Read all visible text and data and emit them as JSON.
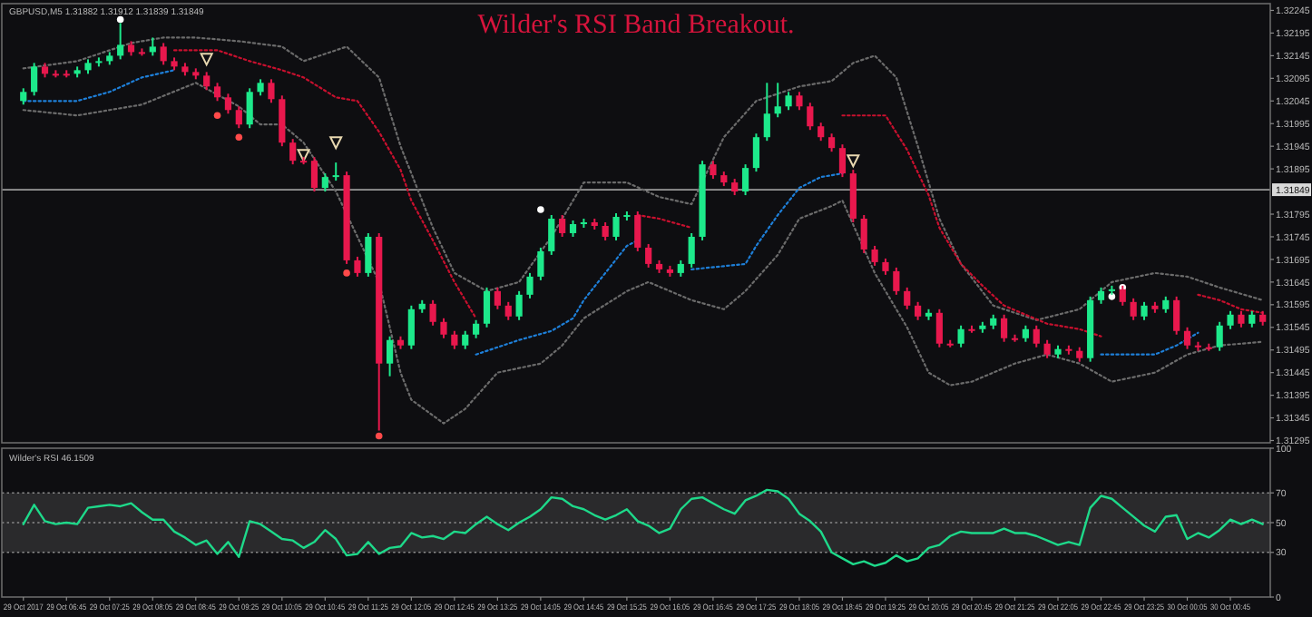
{
  "chart_data": [
    {
      "type": "candlestick",
      "title": "Wilder's RSI Band Breakout.",
      "subtitle": "GBPUSD,M5 1.31882 1.31912 1.31839 1.31849",
      "x": [
        "2017-10-29T06:05",
        "2017-10-29T06:15",
        "2017-10-29T06:25",
        "2017-10-29T06:35",
        "2017-10-29T06:45",
        "2017-10-29T06:55",
        "2017-10-29T07:05",
        "2017-10-29T07:15",
        "2017-10-29T07:25",
        "2017-10-29T07:35",
        "2017-10-29T07:45",
        "2017-10-29T07:55",
        "2017-10-29T08:05",
        "2017-10-29T08:15",
        "2017-10-29T08:25",
        "2017-10-29T08:35",
        "2017-10-29T08:45",
        "2017-10-29T08:55",
        "2017-10-29T09:05",
        "2017-10-29T09:15",
        "2017-10-29T09:25",
        "2017-10-29T09:35",
        "2017-10-29T09:45",
        "2017-10-29T09:55",
        "2017-10-29T10:05",
        "2017-10-29T10:15",
        "2017-10-29T10:25",
        "2017-10-29T10:35",
        "2017-10-29T10:45",
        "2017-10-29T10:55",
        "2017-10-29T11:05",
        "2017-10-29T11:15",
        "2017-10-29T11:25",
        "2017-10-29T11:35",
        "2017-10-29T11:45",
        "2017-10-29T11:55",
        "2017-10-29T12:05",
        "2017-10-29T12:15",
        "2017-10-29T12:25",
        "2017-10-29T12:35",
        "2017-10-29T12:45",
        "2017-10-29T12:55",
        "2017-10-29T13:05",
        "2017-10-29T13:15",
        "2017-10-29T13:25",
        "2017-10-29T13:35",
        "2017-10-29T13:45",
        "2017-10-29T13:55",
        "2017-10-29T14:05",
        "2017-10-29T14:15",
        "2017-10-29T14:25",
        "2017-10-29T14:35",
        "2017-10-29T14:45",
        "2017-10-29T14:55",
        "2017-10-29T15:05",
        "2017-10-29T15:15",
        "2017-10-29T15:25",
        "2017-10-29T15:35",
        "2017-10-29T15:45",
        "2017-10-29T15:55",
        "2017-10-29T16:05",
        "2017-10-29T16:15",
        "2017-10-29T16:25",
        "2017-10-29T16:35",
        "2017-10-29T16:45",
        "2017-10-29T16:55",
        "2017-10-29T17:05",
        "2017-10-29T17:15",
        "2017-10-29T17:25",
        "2017-10-29T17:35",
        "2017-10-29T17:45",
        "2017-10-29T17:55",
        "2017-10-29T18:05",
        "2017-10-29T18:15",
        "2017-10-29T18:25",
        "2017-10-29T18:35",
        "2017-10-29T18:45",
        "2017-10-29T18:55",
        "2017-10-29T19:05",
        "2017-10-29T19:15",
        "2017-10-29T19:25",
        "2017-10-29T19:35",
        "2017-10-29T19:45",
        "2017-10-29T19:55",
        "2017-10-29T20:05",
        "2017-10-29T20:15",
        "2017-10-29T20:25",
        "2017-10-29T20:35",
        "2017-10-29T20:45",
        "2017-10-29T20:55",
        "2017-10-29T21:05",
        "2017-10-29T21:15",
        "2017-10-29T21:25",
        "2017-10-29T21:35",
        "2017-10-29T21:45",
        "2017-10-29T21:55",
        "2017-10-29T22:05",
        "2017-10-29T22:15",
        "2017-10-29T22:25",
        "2017-10-29T22:35",
        "2017-10-29T22:45",
        "2017-10-29T22:55",
        "2017-10-29T23:05",
        "2017-10-29T23:15",
        "2017-10-29T23:25",
        "2017-10-29T23:35",
        "2017-10-29T23:45",
        "2017-10-29T23:55",
        "2017-10-30T00:05",
        "2017-10-30T00:15",
        "2017-10-30T00:25",
        "2017-10-30T00:35",
        "2017-10-30T00:45",
        "2017-10-30T00:55",
        "2017-10-30T01:05",
        "2017-10-30T01:15"
      ],
      "ohlc": [
        [
          1.32045,
          1.32073,
          1.32037,
          1.32065
        ],
        [
          1.32065,
          1.32129,
          1.32057,
          1.32121
        ],
        [
          1.32121,
          1.32129,
          1.32097,
          1.32105
        ],
        [
          1.32105,
          1.32113,
          1.32097,
          1.32105
        ],
        [
          1.32105,
          1.32113,
          1.32097,
          1.32105
        ],
        [
          1.32105,
          1.32121,
          1.32097,
          1.32113
        ],
        [
          1.32113,
          1.32137,
          1.32105,
          1.32129
        ],
        [
          1.32129,
          1.32141,
          1.32121,
          1.32133
        ],
        [
          1.32133,
          1.32153,
          1.32125,
          1.32145
        ],
        [
          1.32145,
          1.32217,
          1.32137,
          1.32169
        ],
        [
          1.32169,
          1.32177,
          1.32145,
          1.32153
        ],
        [
          1.32153,
          1.32161,
          1.32145,
          1.32153
        ],
        [
          1.32153,
          1.32185,
          1.32145,
          1.32165
        ],
        [
          1.32165,
          1.32173,
          1.32125,
          1.32133
        ],
        [
          1.32133,
          1.32141,
          1.32113,
          1.32121
        ],
        [
          1.32121,
          1.32129,
          1.32101,
          1.32109
        ],
        [
          1.32109,
          1.32117,
          1.32093,
          1.32101
        ],
        [
          1.32101,
          1.32109,
          1.32069,
          1.32077
        ],
        [
          1.32077,
          1.32085,
          1.32045,
          1.32053
        ],
        [
          1.32053,
          1.32061,
          1.32017,
          1.32025
        ],
        [
          1.32025,
          1.32033,
          1.31985,
          1.31993
        ],
        [
          1.31993,
          1.32073,
          1.31985,
          1.32065
        ],
        [
          1.32065,
          1.32093,
          1.32057,
          1.32085
        ],
        [
          1.32085,
          1.32093,
          1.32041,
          1.32049
        ],
        [
          1.32049,
          1.32057,
          1.31945,
          1.31953
        ],
        [
          1.31953,
          1.31961,
          1.31905,
          1.31913
        ],
        [
          1.31913,
          1.31921,
          1.31905,
          1.31913
        ],
        [
          1.31913,
          1.31921,
          1.31845,
          1.31853
        ],
        [
          1.31853,
          1.31885,
          1.31845,
          1.31877
        ],
        [
          1.31877,
          1.31909,
          1.31869,
          1.31881
        ],
        [
          1.31881,
          1.31889,
          1.31685,
          1.31693
        ],
        [
          1.31693,
          1.31701,
          1.31657,
          1.31665
        ],
        [
          1.31665,
          1.31753,
          1.31657,
          1.31745
        ],
        [
          1.31745,
          1.31753,
          1.31317,
          1.31465
        ],
        [
          1.31465,
          1.31525,
          1.31437,
          1.31517
        ],
        [
          1.31517,
          1.31525,
          1.31497,
          1.31505
        ],
        [
          1.31505,
          1.31593,
          1.31497,
          1.31585
        ],
        [
          1.31585,
          1.31605,
          1.31577,
          1.31597
        ],
        [
          1.31597,
          1.31605,
          1.31549,
          1.31557
        ],
        [
          1.31557,
          1.31565,
          1.31521,
          1.31529
        ],
        [
          1.31529,
          1.31537,
          1.31497,
          1.31505
        ],
        [
          1.31505,
          1.31537,
          1.31497,
          1.31529
        ],
        [
          1.31529,
          1.31561,
          1.31521,
          1.31553
        ],
        [
          1.31553,
          1.31633,
          1.31545,
          1.31625
        ],
        [
          1.31625,
          1.31633,
          1.31585,
          1.31593
        ],
        [
          1.31593,
          1.31601,
          1.31561,
          1.31569
        ],
        [
          1.31569,
          1.31625,
          1.31561,
          1.31617
        ],
        [
          1.31617,
          1.31665,
          1.31609,
          1.31657
        ],
        [
          1.31657,
          1.31721,
          1.31649,
          1.31713
        ],
        [
          1.31713,
          1.31793,
          1.31705,
          1.31785
        ],
        [
          1.31785,
          1.31793,
          1.31745,
          1.31753
        ],
        [
          1.31753,
          1.31781,
          1.31745,
          1.31773
        ],
        [
          1.31773,
          1.31785,
          1.31765,
          1.31777
        ],
        [
          1.31777,
          1.31785,
          1.31761,
          1.31769
        ],
        [
          1.31769,
          1.31777,
          1.31737,
          1.31745
        ],
        [
          1.31745,
          1.31797,
          1.31737,
          1.31789
        ],
        [
          1.31789,
          1.31801,
          1.31781,
          1.31793
        ],
        [
          1.31793,
          1.31801,
          1.31713,
          1.31721
        ],
        [
          1.31721,
          1.31729,
          1.31677,
          1.31685
        ],
        [
          1.31685,
          1.31693,
          1.31665,
          1.31673
        ],
        [
          1.31673,
          1.31681,
          1.31657,
          1.31665
        ],
        [
          1.31665,
          1.31693,
          1.31657,
          1.31685
        ],
        [
          1.31685,
          1.31753,
          1.31677,
          1.31745
        ],
        [
          1.31745,
          1.31913,
          1.31737,
          1.31905
        ],
        [
          1.31905,
          1.31913,
          1.31873,
          1.31881
        ],
        [
          1.31881,
          1.31889,
          1.31857,
          1.31865
        ],
        [
          1.31865,
          1.31873,
          1.31837,
          1.31845
        ],
        [
          1.31845,
          1.31905,
          1.31837,
          1.31897
        ],
        [
          1.31897,
          1.31973,
          1.31889,
          1.31965
        ],
        [
          1.31965,
          1.32085,
          1.31957,
          1.32017
        ],
        [
          1.32017,
          1.32085,
          1.32009,
          1.32033
        ],
        [
          1.32033,
          1.32065,
          1.32025,
          1.32057
        ],
        [
          1.32057,
          1.32065,
          1.32025,
          1.32033
        ],
        [
          1.32033,
          1.32041,
          1.31981,
          1.31989
        ],
        [
          1.31989,
          1.31997,
          1.31957,
          1.31965
        ],
        [
          1.31965,
          1.31973,
          1.31933,
          1.31941
        ],
        [
          1.31941,
          1.31949,
          1.31877,
          1.31885
        ],
        [
          1.31885,
          1.31893,
          1.31777,
          1.31785
        ],
        [
          1.31785,
          1.31793,
          1.31709,
          1.31717
        ],
        [
          1.31717,
          1.31725,
          1.31681,
          1.31689
        ],
        [
          1.31689,
          1.31697,
          1.31661,
          1.31669
        ],
        [
          1.31669,
          1.31677,
          1.31617,
          1.31625
        ],
        [
          1.31625,
          1.31633,
          1.31585,
          1.31593
        ],
        [
          1.31593,
          1.31601,
          1.31561,
          1.31569
        ],
        [
          1.31569,
          1.31585,
          1.31561,
          1.31577
        ],
        [
          1.31577,
          1.31585,
          1.31501,
          1.31509
        ],
        [
          1.31509,
          1.31517,
          1.31501,
          1.31509
        ],
        [
          1.31509,
          1.31549,
          1.31501,
          1.31541
        ],
        [
          1.31541,
          1.31549,
          1.31533,
          1.31541
        ],
        [
          1.31541,
          1.31557,
          1.31533,
          1.31549
        ],
        [
          1.31549,
          1.31573,
          1.31541,
          1.31565
        ],
        [
          1.31565,
          1.31573,
          1.31513,
          1.31521
        ],
        [
          1.31521,
          1.31529,
          1.31513,
          1.31521
        ],
        [
          1.31521,
          1.31549,
          1.31513,
          1.31541
        ],
        [
          1.31541,
          1.31549,
          1.31501,
          1.31509
        ],
        [
          1.31509,
          1.31517,
          1.31477,
          1.31485
        ],
        [
          1.31485,
          1.31505,
          1.31477,
          1.31497
        ],
        [
          1.31497,
          1.31505,
          1.31485,
          1.31493
        ],
        [
          1.31493,
          1.31501,
          1.31469,
          1.31477
        ],
        [
          1.31477,
          1.31613,
          1.31469,
          1.31605
        ],
        [
          1.31605,
          1.31633,
          1.31597,
          1.31625
        ],
        [
          1.31625,
          1.31637,
          1.31617,
          1.31629
        ],
        [
          1.31629,
          1.31637,
          1.31593,
          1.31601
        ],
        [
          1.31601,
          1.31609,
          1.31561,
          1.31569
        ],
        [
          1.31569,
          1.31601,
          1.31561,
          1.31593
        ],
        [
          1.31593,
          1.31601,
          1.31577,
          1.31585
        ],
        [
          1.31585,
          1.31613,
          1.31577,
          1.31605
        ],
        [
          1.31605,
          1.31613,
          1.31529,
          1.31537
        ],
        [
          1.31537,
          1.31545,
          1.31497,
          1.31505
        ],
        [
          1.31505,
          1.31513,
          1.31493,
          1.31501
        ],
        [
          1.31501,
          1.31509,
          1.31493,
          1.31501
        ],
        [
          1.31501,
          1.31557,
          1.31493,
          1.31549
        ],
        [
          1.31549,
          1.31581,
          1.31541,
          1.31573
        ],
        [
          1.31573,
          1.31581,
          1.31545,
          1.31553
        ],
        [
          1.31553,
          1.31581,
          1.31545,
          1.31573
        ],
        [
          1.31573,
          1.31581,
          1.31549,
          1.31557
        ]
      ],
      "colors": [
        "#1de98b",
        "#1de98b",
        "#e8184d",
        "#e8184d",
        "#e8184d",
        "#1de98b",
        "#1de98b",
        "#1de98b",
        "#1de98b",
        "#1de98b",
        "#e8184d",
        "#e8184d",
        "#1de98b",
        "#e8184d",
        "#e8184d",
        "#e8184d",
        "#e8184d",
        "#e8184d",
        "#e8184d",
        "#e8184d",
        "#e8184d",
        "#1de98b",
        "#1de98b",
        "#e8184d",
        "#e8184d",
        "#e8184d",
        "#e8184d",
        "#e8184d",
        "#1de98b",
        "#1de98b",
        "#e8184d",
        "#e8184d",
        "#1de98b",
        "#e8184d",
        "#1de98b",
        "#e8184d",
        "#1de98b",
        "#1de98b",
        "#e8184d",
        "#e8184d",
        "#e8184d",
        "#1de98b",
        "#1de98b",
        "#1de98b",
        "#e8184d",
        "#e8184d",
        "#1de98b",
        "#1de98b",
        "#1de98b",
        "#1de98b",
        "#e8184d",
        "#1de98b",
        "#1de98b",
        "#e8184d",
        "#e8184d",
        "#1de98b",
        "#1de98b",
        "#e8184d",
        "#e8184d",
        "#e8184d",
        "#e8184d",
        "#1de98b",
        "#1de98b",
        "#1de98b",
        "#e8184d",
        "#e8184d",
        "#e8184d",
        "#1de98b",
        "#1de98b",
        "#1de98b",
        "#1de98b",
        "#1de98b",
        "#e8184d",
        "#e8184d",
        "#e8184d",
        "#e8184d",
        "#e8184d",
        "#e8184d",
        "#e8184d",
        "#e8184d",
        "#e8184d",
        "#e8184d",
        "#e8184d",
        "#e8184d",
        "#1de98b",
        "#e8184d",
        "#e8184d",
        "#1de98b",
        "#e8184d",
        "#1de98b",
        "#1de98b",
        "#e8184d",
        "#e8184d",
        "#1de98b",
        "#e8184d",
        "#e8184d",
        "#1de98b",
        "#e8184d",
        "#e8184d",
        "#1de98b",
        "#1de98b",
        "#1de98b",
        "#e8184d",
        "#e8184d",
        "#1de98b",
        "#e8184d",
        "#1de98b",
        "#e8184d",
        "#e8184d",
        "#e8184d",
        "#e8184d",
        "#1de98b",
        "#1de98b",
        "#e8184d",
        "#1de98b",
        "#e8184d"
      ],
      "series": [
        {
          "type": "line",
          "line_style": "dotted",
          "color": "#6b6b6b",
          "x": [
            "2017-10-29T06:05",
            "2017-10-29T06:55",
            "2017-10-29T07:45",
            "2017-10-29T08:15",
            "2017-10-29T08:45",
            "2017-10-29T09:25",
            "2017-10-29T10:05",
            "2017-10-29T10:25",
            "2017-10-29T11:05",
            "2017-10-29T11:35",
            "2017-10-29T11:55",
            "2017-10-29T12:25",
            "2017-10-29T12:45",
            "2017-10-29T13:15",
            "2017-10-29T13:45",
            "2017-10-29T14:15",
            "2017-10-29T14:45",
            "2017-10-29T15:25",
            "2017-10-29T15:55",
            "2017-10-29T16:25",
            "2017-10-29T16:55",
            "2017-10-29T17:25",
            "2017-10-29T18:05",
            "2017-10-29T18:35",
            "2017-10-29T18:55",
            "2017-10-29T19:15",
            "2017-10-29T19:35",
            "2017-10-29T19:55",
            "2017-10-29T20:15",
            "2017-10-29T20:35",
            "2017-10-29T21:05",
            "2017-10-29T21:45",
            "2017-10-29T22:25",
            "2017-10-29T22:55",
            "2017-10-29T23:35",
            "2017-10-30T00:05",
            "2017-10-30T00:35",
            "2017-10-30T01:15"
          ],
          "values": [
            1.32117,
            1.32133,
            1.32173,
            1.32185,
            1.32185,
            1.32177,
            1.32165,
            1.32133,
            1.32165,
            1.32097,
            1.31945,
            1.31765,
            1.31665,
            1.31625,
            1.31645,
            1.31745,
            1.31865,
            1.31865,
            1.31833,
            1.31817,
            1.31965,
            1.32045,
            1.32077,
            1.32089,
            1.32129,
            1.32145,
            1.32097,
            1.31945,
            1.31785,
            1.31685,
            1.31593,
            1.31561,
            1.31585,
            1.31645,
            1.31665,
            1.31657,
            1.31633,
            1.31605
          ]
        },
        {
          "type": "line",
          "line_style": "dotted",
          "color": "#6b6b6b",
          "x": [
            "2017-10-29T06:05",
            "2017-10-29T06:55",
            "2017-10-29T07:25",
            "2017-10-29T07:55",
            "2017-10-29T08:45",
            "2017-10-29T09:25",
            "2017-10-29T09:45",
            "2017-10-29T10:05",
            "2017-10-29T10:25",
            "2017-10-29T10:55",
            "2017-10-29T11:35",
            "2017-10-29T11:55",
            "2017-10-29T12:05",
            "2017-10-29T12:35",
            "2017-10-29T12:55",
            "2017-10-29T13:25",
            "2017-10-29T14:05",
            "2017-10-29T14:25",
            "2017-10-29T14:45",
            "2017-10-29T15:25",
            "2017-10-29T15:45",
            "2017-10-29T16:25",
            "2017-10-29T16:55",
            "2017-10-29T17:15",
            "2017-10-29T17:45",
            "2017-10-29T18:05",
            "2017-10-29T18:35",
            "2017-10-29T18:45",
            "2017-10-29T19:15",
            "2017-10-29T19:45",
            "2017-10-29T20:05",
            "2017-10-29T20:25",
            "2017-10-29T20:45",
            "2017-10-29T21:25",
            "2017-10-29T21:55",
            "2017-10-29T22:25",
            "2017-10-29T22:55",
            "2017-10-29T23:35",
            "2017-10-30T00:05",
            "2017-10-30T00:35",
            "2017-10-30T01:15"
          ],
          "values": [
            1.32025,
            1.32013,
            1.32025,
            1.32037,
            1.32085,
            1.32033,
            1.31993,
            1.31993,
            1.31953,
            1.31845,
            1.31645,
            1.31445,
            1.31385,
            1.31333,
            1.31365,
            1.31445,
            1.31465,
            1.31505,
            1.31565,
            1.31625,
            1.31645,
            1.31605,
            1.31585,
            1.31625,
            1.31705,
            1.31785,
            1.31813,
            1.31825,
            1.31665,
            1.31545,
            1.31445,
            1.31417,
            1.31425,
            1.31465,
            1.31485,
            1.31465,
            1.31425,
            1.31445,
            1.31485,
            1.31505,
            1.31513
          ]
        },
        {
          "type": "line",
          "line_style": "dotted",
          "color": "#c8102e",
          "x": [
            "2017-10-29T08:25",
            "2017-10-29T09:05",
            "2017-10-29T09:35",
            "2017-10-29T10:05",
            "2017-10-29T10:25",
            "2017-10-29T10:55",
            "2017-10-29T11:15",
            "2017-10-29T11:35",
            "2017-10-29T11:55",
            "2017-10-29T12:05",
            "2017-10-29T12:25",
            "2017-10-29T12:45",
            "2017-10-29T13:05",
            "2017-10-29T13:15",
            "2017-10-29T15:35",
            "2017-10-29T15:55",
            "2017-10-29T16:25",
            "2017-10-29T16:35",
            "2017-10-29T18:45",
            "2017-10-29T19:25",
            "2017-10-29T19:45",
            "2017-10-29T20:05",
            "2017-10-29T20:15",
            "2017-10-29T20:35",
            "2017-10-29T20:55",
            "2017-10-29T21:15",
            "2017-10-29T21:35",
            "2017-10-29T21:55",
            "2017-10-29T22:25",
            "2017-10-29T22:45",
            "2017-10-29T22:55",
            "2017-10-30T00:15",
            "2017-10-30T00:35",
            "2017-10-30T00:55",
            "2017-10-30T01:15"
          ],
          "values": [
            1.32157,
            1.32157,
            1.32133,
            1.32113,
            1.32097,
            1.32053,
            1.32045,
            1.31977,
            1.31893,
            1.31825,
            1.31737,
            1.31645,
            1.31565,
            null,
            1.31793,
            1.31785,
            1.31765,
            null,
            1.32013,
            1.32013,
            1.31937,
            1.31837,
            1.31765,
            1.31685,
            1.31637,
            1.31593,
            1.31573,
            1.31553,
            1.31541,
            1.31525,
            null,
            1.31617,
            1.31605,
            1.31585,
            1.31577
          ]
        },
        {
          "type": "line",
          "line_style": "dotted",
          "color": "#1e7fd8",
          "x": [
            "2017-10-29T06:05",
            "2017-10-29T06:55",
            "2017-10-29T07:25",
            "2017-10-29T07:55",
            "2017-10-29T08:25",
            "2017-10-29T08:35",
            "2017-10-29T13:05",
            "2017-10-29T13:45",
            "2017-10-29T14:15",
            "2017-10-29T14:35",
            "2017-10-29T14:45",
            "2017-10-29T15:05",
            "2017-10-29T15:25",
            "2017-10-29T15:35",
            "2017-10-29T15:45",
            "2017-10-29T16:25",
            "2017-10-29T17:15",
            "2017-10-29T17:25",
            "2017-10-29T17:45",
            "2017-10-29T18:05",
            "2017-10-29T18:25",
            "2017-10-29T18:45",
            "2017-10-29T18:55",
            "2017-10-29T22:45",
            "2017-10-29T23:35",
            "2017-10-29T23:55",
            "2017-10-30T00:15"
          ],
          "values": [
            1.32045,
            1.32045,
            1.32065,
            1.32097,
            1.32113,
            null,
            1.31485,
            1.31517,
            1.31537,
            1.31565,
            1.31605,
            1.31665,
            1.31725,
            1.31737,
            null,
            1.31673,
            1.31685,
            1.31725,
            1.31793,
            1.31853,
            1.31877,
            1.31885,
            null,
            1.31485,
            1.31485,
            1.31505,
            1.31533
          ]
        },
        {
          "type": "scatter",
          "marker": "circle",
          "color": "#ffffff",
          "x": [
            "2017-10-29T07:35",
            "2017-10-29T14:05",
            "2017-10-29T22:55",
            "2017-10-29T23:05"
          ],
          "values": [
            1.32225,
            1.31805,
            1.31613,
            1.31633
          ]
        },
        {
          "type": "scatter",
          "marker": "circle",
          "color": "#ff4a4a",
          "x": [
            "2017-10-29T09:05",
            "2017-10-29T09:25",
            "2017-10-29T11:05",
            "2017-10-29T11:35"
          ],
          "values": [
            1.32013,
            1.31965,
            1.31665,
            1.31305
          ]
        },
        {
          "type": "scatter",
          "marker": "triangle",
          "color": "#e8d8b0",
          "x": [
            "2017-10-29T08:55",
            "2017-10-29T10:25",
            "2017-10-29T10:55",
            "2017-10-29T18:55"
          ],
          "values": [
            1.32137,
            1.31925,
            1.31953,
            1.31913
          ]
        }
      ],
      "xlim": [
        "2017-10-29T05:45",
        "2017-10-30T01:22"
      ],
      "ylim": [
        1.3129,
        1.3226
      ],
      "yticks": [
        1.31295,
        1.31345,
        1.31395,
        1.31445,
        1.31495,
        1.31545,
        1.31595,
        1.31645,
        1.31695,
        1.31745,
        1.31795,
        1.31895,
        1.31945,
        1.31995,
        1.32045,
        1.32095,
        1.32145,
        1.32195,
        1.32245
      ],
      "tick_labels": "y",
      "ref_lines": [
        {
          "axis": "y",
          "value": 1.31849,
          "label": "1.31849",
          "color": "#9a9a9a"
        }
      ]
    },
    {
      "type": "line",
      "title": "Wilder's RSI 46.1509",
      "x": [
        "2017-10-29T06:05",
        "2017-10-29T06:15",
        "2017-10-29T06:25",
        "2017-10-29T06:35",
        "2017-10-29T06:45",
        "2017-10-29T06:55",
        "2017-10-29T07:05",
        "2017-10-29T07:15",
        "2017-10-29T07:25",
        "2017-10-29T07:35",
        "2017-10-29T07:45",
        "2017-10-29T07:55",
        "2017-10-29T08:05",
        "2017-10-29T08:15",
        "2017-10-29T08:25",
        "2017-10-29T08:35",
        "2017-10-29T08:45",
        "2017-10-29T08:55",
        "2017-10-29T09:05",
        "2017-10-29T09:15",
        "2017-10-29T09:25",
        "2017-10-29T09:35",
        "2017-10-29T09:45",
        "2017-10-29T09:55",
        "2017-10-29T10:05",
        "2017-10-29T10:15",
        "2017-10-29T10:25",
        "2017-10-29T10:35",
        "2017-10-29T10:45",
        "2017-10-29T10:55",
        "2017-10-29T11:05",
        "2017-10-29T11:15",
        "2017-10-29T11:25",
        "2017-10-29T11:35",
        "2017-10-29T11:45",
        "2017-10-29T11:55",
        "2017-10-29T12:05",
        "2017-10-29T12:15",
        "2017-10-29T12:25",
        "2017-10-29T12:35",
        "2017-10-29T12:45",
        "2017-10-29T12:55",
        "2017-10-29T13:05",
        "2017-10-29T13:15",
        "2017-10-29T13:25",
        "2017-10-29T13:35",
        "2017-10-29T13:45",
        "2017-10-29T13:55",
        "2017-10-29T14:05",
        "2017-10-29T14:15",
        "2017-10-29T14:25",
        "2017-10-29T14:35",
        "2017-10-29T14:45",
        "2017-10-29T14:55",
        "2017-10-29T15:05",
        "2017-10-29T15:15",
        "2017-10-29T15:25",
        "2017-10-29T15:35",
        "2017-10-29T15:45",
        "2017-10-29T15:55",
        "2017-10-29T16:05",
        "2017-10-29T16:15",
        "2017-10-29T16:25",
        "2017-10-29T16:35",
        "2017-10-29T16:45",
        "2017-10-29T16:55",
        "2017-10-29T17:05",
        "2017-10-29T17:15",
        "2017-10-29T17:25",
        "2017-10-29T17:35",
        "2017-10-29T17:45",
        "2017-10-29T17:55",
        "2017-10-29T18:05",
        "2017-10-29T18:15",
        "2017-10-29T18:25",
        "2017-10-29T18:35",
        "2017-10-29T18:45",
        "2017-10-29T18:55",
        "2017-10-29T19:05",
        "2017-10-29T19:15",
        "2017-10-29T19:25",
        "2017-10-29T19:35",
        "2017-10-29T19:45",
        "2017-10-29T19:55",
        "2017-10-29T20:05",
        "2017-10-29T20:15",
        "2017-10-29T20:25",
        "2017-10-29T20:35",
        "2017-10-29T20:45",
        "2017-10-29T20:55",
        "2017-10-29T21:05",
        "2017-10-29T21:15",
        "2017-10-29T21:25",
        "2017-10-29T21:35",
        "2017-10-29T21:45",
        "2017-10-29T21:55",
        "2017-10-29T22:05",
        "2017-10-29T22:15",
        "2017-10-29T22:25",
        "2017-10-29T22:35",
        "2017-10-29T22:45",
        "2017-10-29T22:55",
        "2017-10-29T23:05",
        "2017-10-29T23:15",
        "2017-10-29T23:25",
        "2017-10-29T23:35",
        "2017-10-29T23:45",
        "2017-10-29T23:55",
        "2017-10-30T00:05",
        "2017-10-30T00:15",
        "2017-10-30T00:25",
        "2017-10-30T00:35",
        "2017-10-30T00:45",
        "2017-10-30T00:55",
        "2017-10-30T01:05",
        "2017-10-30T01:15"
      ],
      "series": [
        {
          "color": "#1ed98a",
          "values": [
            49,
            62,
            51,
            49,
            50,
            49,
            60,
            61,
            62,
            61,
            63,
            57,
            52,
            52,
            44,
            40,
            35,
            38,
            29,
            37,
            27,
            51,
            49,
            44,
            39,
            38,
            33,
            37,
            45,
            39,
            28,
            29,
            37,
            29,
            33,
            34,
            43,
            40,
            41,
            39,
            44,
            43,
            49,
            54,
            49,
            45,
            50,
            54,
            59,
            67,
            66,
            61,
            59,
            55,
            52,
            55,
            59,
            51,
            48,
            43,
            46,
            59,
            66,
            67,
            63,
            59,
            56,
            65,
            68,
            72,
            71,
            66,
            56,
            51,
            44,
            30,
            26,
            22,
            24,
            21,
            23,
            28,
            24,
            26,
            33,
            35,
            41,
            44,
            43,
            43,
            43,
            46,
            43,
            43,
            41,
            38,
            35,
            37,
            35,
            60,
            68,
            66,
            60,
            54,
            48,
            44,
            54,
            55,
            39,
            43,
            40,
            45,
            52,
            49,
            52,
            49
          ]
        }
      ],
      "xlim": [
        "2017-10-29T05:45",
        "2017-10-30T01:22"
      ],
      "xticks": [
        {
          "value": "2017-10-29T06:05",
          "label": "29 Oct 2017"
        },
        {
          "value": "2017-10-29T06:45",
          "label": "29 Oct 06:45"
        },
        {
          "value": "2017-10-29T07:25",
          "label": "29 Oct 07:25"
        },
        {
          "value": "2017-10-29T08:05",
          "label": "29 Oct 08:05"
        },
        {
          "value": "2017-10-29T08:45",
          "label": "29 Oct 08:45"
        },
        {
          "value": "2017-10-29T09:25",
          "label": "29 Oct 09:25"
        },
        {
          "value": "2017-10-29T10:05",
          "label": "29 Oct 10:05"
        },
        {
          "value": "2017-10-29T10:45",
          "label": "29 Oct 10:45"
        },
        {
          "value": "2017-10-29T11:25",
          "label": "29 Oct 11:25"
        },
        {
          "value": "2017-10-29T12:05",
          "label": "29 Oct 12:05"
        },
        {
          "value": "2017-10-29T12:45",
          "label": "29 Oct 12:45"
        },
        {
          "value": "2017-10-29T13:25",
          "label": "29 Oct 13:25"
        },
        {
          "value": "2017-10-29T14:05",
          "label": "29 Oct 14:05"
        },
        {
          "value": "2017-10-29T14:45",
          "label": "29 Oct 14:45"
        },
        {
          "value": "2017-10-29T15:25",
          "label": "29 Oct 15:25"
        },
        {
          "value": "2017-10-29T16:05",
          "label": "29 Oct 16:05"
        },
        {
          "value": "2017-10-29T16:45",
          "label": "29 Oct 16:45"
        },
        {
          "value": "2017-10-29T17:25",
          "label": "29 Oct 17:25"
        },
        {
          "value": "2017-10-29T18:05",
          "label": "29 Oct 18:05"
        },
        {
          "value": "2017-10-29T18:45",
          "label": "29 Oct 18:45"
        },
        {
          "value": "2017-10-29T19:25",
          "label": "29 Oct 19:25"
        },
        {
          "value": "2017-10-29T20:05",
          "label": "29 Oct 20:05"
        },
        {
          "value": "2017-10-29T20:45",
          "label": "29 Oct 20:45"
        },
        {
          "value": "2017-10-29T21:25",
          "label": "29 Oct 21:25"
        },
        {
          "value": "2017-10-29T22:05",
          "label": "29 Oct 22:05"
        },
        {
          "value": "2017-10-29T22:45",
          "label": "29 Oct 22:45"
        },
        {
          "value": "2017-10-29T23:25",
          "label": "29 Oct 23:25"
        },
        {
          "value": "2017-10-30T00:05",
          "label": "30 Oct 00:05"
        },
        {
          "value": "2017-10-30T00:45",
          "label": "30 Oct 00:45"
        }
      ],
      "ylim": [
        0,
        100
      ],
      "yticks": [
        0,
        30,
        50,
        70,
        100
      ],
      "bands": [
        {
          "axis": "y",
          "from": 30,
          "to": 70,
          "color": "#2a2a2c"
        }
      ],
      "ref_lines": [
        {
          "axis": "y",
          "value": 30,
          "color": "#8a8a8a",
          "line_style": "dotted"
        },
        {
          "axis": "y",
          "value": 50,
          "color": "#8a8a8a",
          "line_style": "dotted"
        },
        {
          "axis": "y",
          "value": 70,
          "color": "#8a8a8a",
          "line_style": "dotted"
        }
      ]
    }
  ]
}
